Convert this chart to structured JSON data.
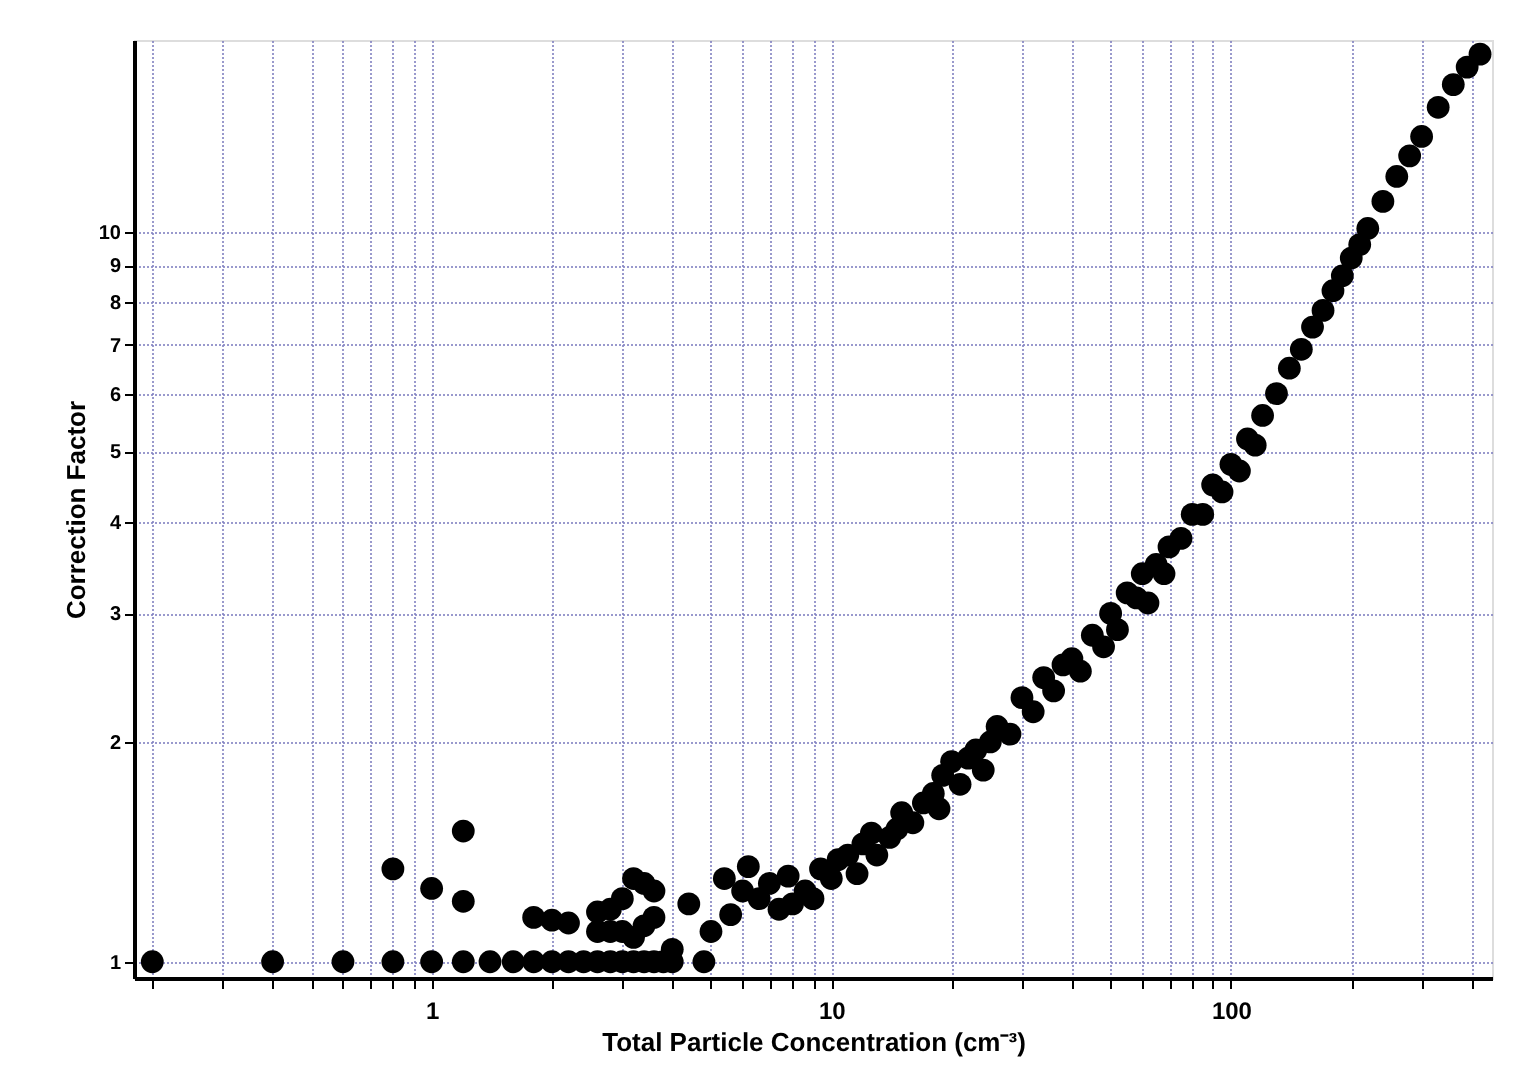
{
  "chart_data": {
    "type": "scatter",
    "xlabel": "Total Particle Concentration (cm⁻³)",
    "ylabel": "Correction Factor",
    "log": "xy",
    "grid": true,
    "marker": "circle",
    "xlim": [
      0.18,
      450
    ],
    "ylim": [
      0.95,
      18.3
    ],
    "xticks": [
      {
        "value": 0.2,
        "label": null
      },
      {
        "value": 0.3,
        "label": null
      },
      {
        "value": 0.4,
        "label": null
      },
      {
        "value": 0.5,
        "label": null
      },
      {
        "value": 0.6,
        "label": null
      },
      {
        "value": 0.7,
        "label": null
      },
      {
        "value": 0.8,
        "label": null
      },
      {
        "value": 0.9,
        "label": null
      },
      1,
      {
        "value": 2,
        "label": null
      },
      {
        "value": 3,
        "label": null
      },
      {
        "value": 4,
        "label": null
      },
      {
        "value": 5,
        "label": null
      },
      {
        "value": 6,
        "label": null
      },
      {
        "value": 7,
        "label": null
      },
      {
        "value": 8,
        "label": null
      },
      {
        "value": 9,
        "label": null
      },
      10,
      {
        "value": 20,
        "label": null
      },
      {
        "value": 30,
        "label": null
      },
      {
        "value": 40,
        "label": null
      },
      {
        "value": 50,
        "label": null
      },
      {
        "value": 60,
        "label": null
      },
      {
        "value": 70,
        "label": null
      },
      {
        "value": 80,
        "label": null
      },
      {
        "value": 90,
        "label": null
      },
      100,
      {
        "value": 200,
        "label": null
      },
      {
        "value": 300,
        "label": null
      },
      {
        "value": 400,
        "label": null
      }
    ],
    "yticks": [
      1,
      2,
      3,
      4,
      5,
      6,
      7,
      8,
      9,
      10
    ],
    "series": [
      {
        "color": "#000000",
        "x": [
          0.2,
          0.4,
          0.6,
          0.8,
          1.0,
          1.2,
          1.4,
          1.6,
          1.8,
          2.0,
          2.2,
          2.4,
          2.6,
          2.8,
          3.0,
          3.2,
          3.4,
          3.6,
          3.8,
          4.0,
          4.8,
          0.8,
          1.0,
          1.2,
          1.2,
          1.8,
          2.0,
          2.2,
          2.6,
          2.8,
          3.0,
          2.6,
          2.8,
          3.0,
          3.2,
          3.4,
          3.6,
          3.6,
          3.4,
          3.2,
          4.0,
          4.4,
          5.0,
          5.4,
          5.6,
          6.0,
          6.2,
          6.6,
          7.0,
          7.4,
          7.8,
          8.0,
          8.6,
          9.0,
          9.4,
          10,
          10.4,
          11,
          11.6,
          12,
          12.6,
          13,
          14,
          14.6,
          15,
          16,
          17,
          18,
          18.6,
          19,
          20,
          21,
          22,
          23,
          24,
          25,
          26,
          28,
          30,
          32,
          34,
          36,
          38,
          40,
          42,
          45,
          48,
          50,
          52,
          55,
          58,
          60,
          62,
          65,
          68,
          70,
          75,
          80,
          85,
          90,
          95,
          100,
          105,
          110,
          115,
          120,
          130,
          140,
          150,
          160,
          170,
          180,
          190,
          200,
          210,
          220,
          240,
          260,
          280,
          300,
          330,
          360,
          390,
          420
        ],
        "values": [
          1,
          1,
          1,
          1,
          1,
          1,
          1,
          1,
          1,
          1,
          1,
          1,
          1,
          1,
          1,
          1,
          1,
          1,
          1,
          1,
          1,
          1.34,
          1.26,
          1.51,
          1.21,
          1.15,
          1.14,
          1.13,
          1.1,
          1.1,
          1.1,
          1.17,
          1.18,
          1.22,
          1.3,
          1.28,
          1.25,
          1.15,
          1.12,
          1.08,
          1.04,
          1.2,
          1.1,
          1.3,
          1.16,
          1.25,
          1.35,
          1.22,
          1.28,
          1.18,
          1.31,
          1.2,
          1.25,
          1.22,
          1.34,
          1.3,
          1.38,
          1.4,
          1.32,
          1.45,
          1.5,
          1.4,
          1.48,
          1.52,
          1.6,
          1.55,
          1.65,
          1.7,
          1.62,
          1.8,
          1.88,
          1.75,
          1.9,
          1.95,
          1.83,
          2.0,
          2.1,
          2.05,
          2.3,
          2.2,
          2.45,
          2.35,
          2.55,
          2.6,
          2.5,
          2.8,
          2.7,
          3.0,
          2.85,
          3.2,
          3.15,
          3.4,
          3.1,
          3.5,
          3.4,
          3.7,
          3.8,
          4.1,
          4.1,
          4.5,
          4.4,
          4.8,
          4.7,
          5.2,
          5.1,
          5.6,
          6.0,
          6.5,
          6.9,
          7.4,
          7.8,
          8.3,
          8.7,
          9.2,
          9.6,
          10.1,
          11.0,
          11.9,
          12.7,
          13.5,
          14.8,
          15.9,
          16.8,
          17.5
        ]
      }
    ]
  }
}
